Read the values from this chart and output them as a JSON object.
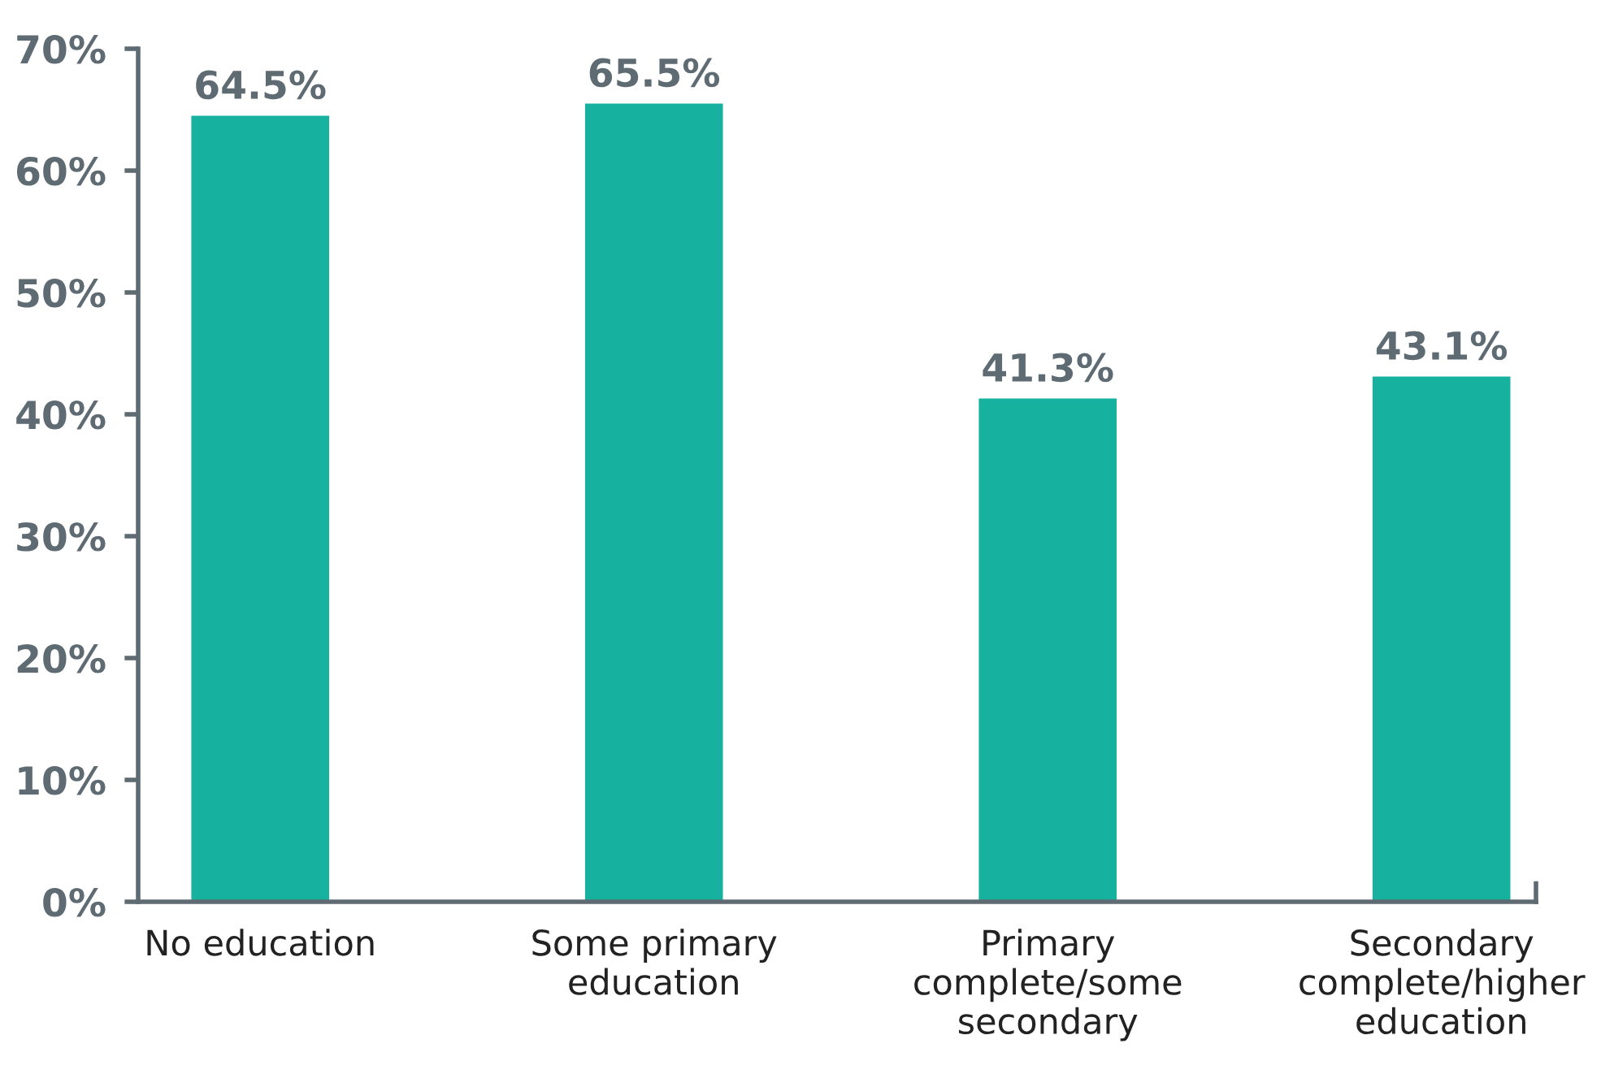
{
  "chart_data": {
    "type": "bar",
    "categories": [
      "No education",
      "Some primary\neducation",
      "Primary\ncomplete/some\nsecondary",
      "Secondary\ncomplete/higher\neducation"
    ],
    "values": [
      64.5,
      65.5,
      41.3,
      43.1
    ],
    "value_labels": [
      "64.5%",
      "65.5%",
      "41.3%",
      "43.1%"
    ],
    "color": "#17b1a0",
    "ylim": [
      0,
      70
    ],
    "yticks": [
      {
        "value": 0,
        "label": "0%"
      },
      {
        "value": 10,
        "label": "10%"
      },
      {
        "value": 20,
        "label": "20%"
      },
      {
        "value": 30,
        "label": "30%"
      },
      {
        "value": 40,
        "label": "40%"
      },
      {
        "value": 50,
        "label": "50%"
      },
      {
        "value": 60,
        "label": "60%"
      },
      {
        "value": 70,
        "label": "70%"
      }
    ],
    "grid": false,
    "legend": false
  }
}
